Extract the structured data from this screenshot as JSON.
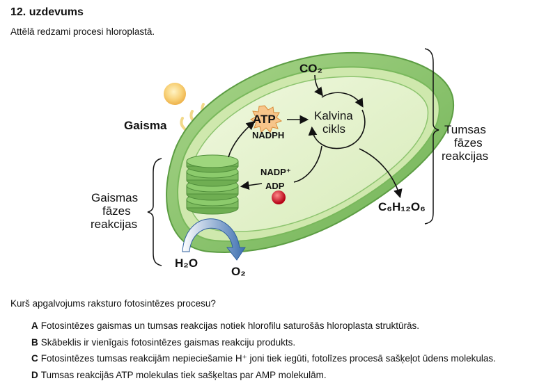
{
  "task": {
    "title": "12. uzdevums",
    "intro": "Attēlā redzami procesi hloroplastā."
  },
  "figure": {
    "light_label": "Gaisma",
    "co2": "CO₂",
    "atp": "ATP",
    "nadph": "NADPH",
    "calvin_line1": "Kalvina",
    "calvin_line2": "cikls",
    "nadp": "NADP⁺",
    "adp": "ADP",
    "glucose": "C₆H₁₂O₆",
    "light_phase_line1": "Gaismas",
    "light_phase_line2": "fāzes",
    "light_phase_line3": "reakcijas",
    "dark_phase_line1": "Tumsas",
    "dark_phase_line2": "fāzes",
    "dark_phase_line3": "reakcijas",
    "h2o": "H₂O",
    "o2": "O₂"
  },
  "question": "Kurš apgalvojums raksturo fotosintēzes procesu?",
  "options": [
    {
      "letter": "A",
      "text": "Fotosintēzes gaismas un tumsas reakcijas notiek hlorofilu saturošās hloroplasta struktūrās."
    },
    {
      "letter": "B",
      "text": "Skābeklis ir vienīgais fotosintēzes gaismas reakciju produkts."
    },
    {
      "letter": "C",
      "text": "Fotosintēzes tumsas reakcijām nepieciešamie H⁺ joni tiek iegūti, fotolīzes procesā sašķeļot ūdens molekulas."
    },
    {
      "letter": "D",
      "text": "Tumsas reakcijās ATP molekulas tiek sašķeltas par AMP molekulām."
    }
  ]
}
